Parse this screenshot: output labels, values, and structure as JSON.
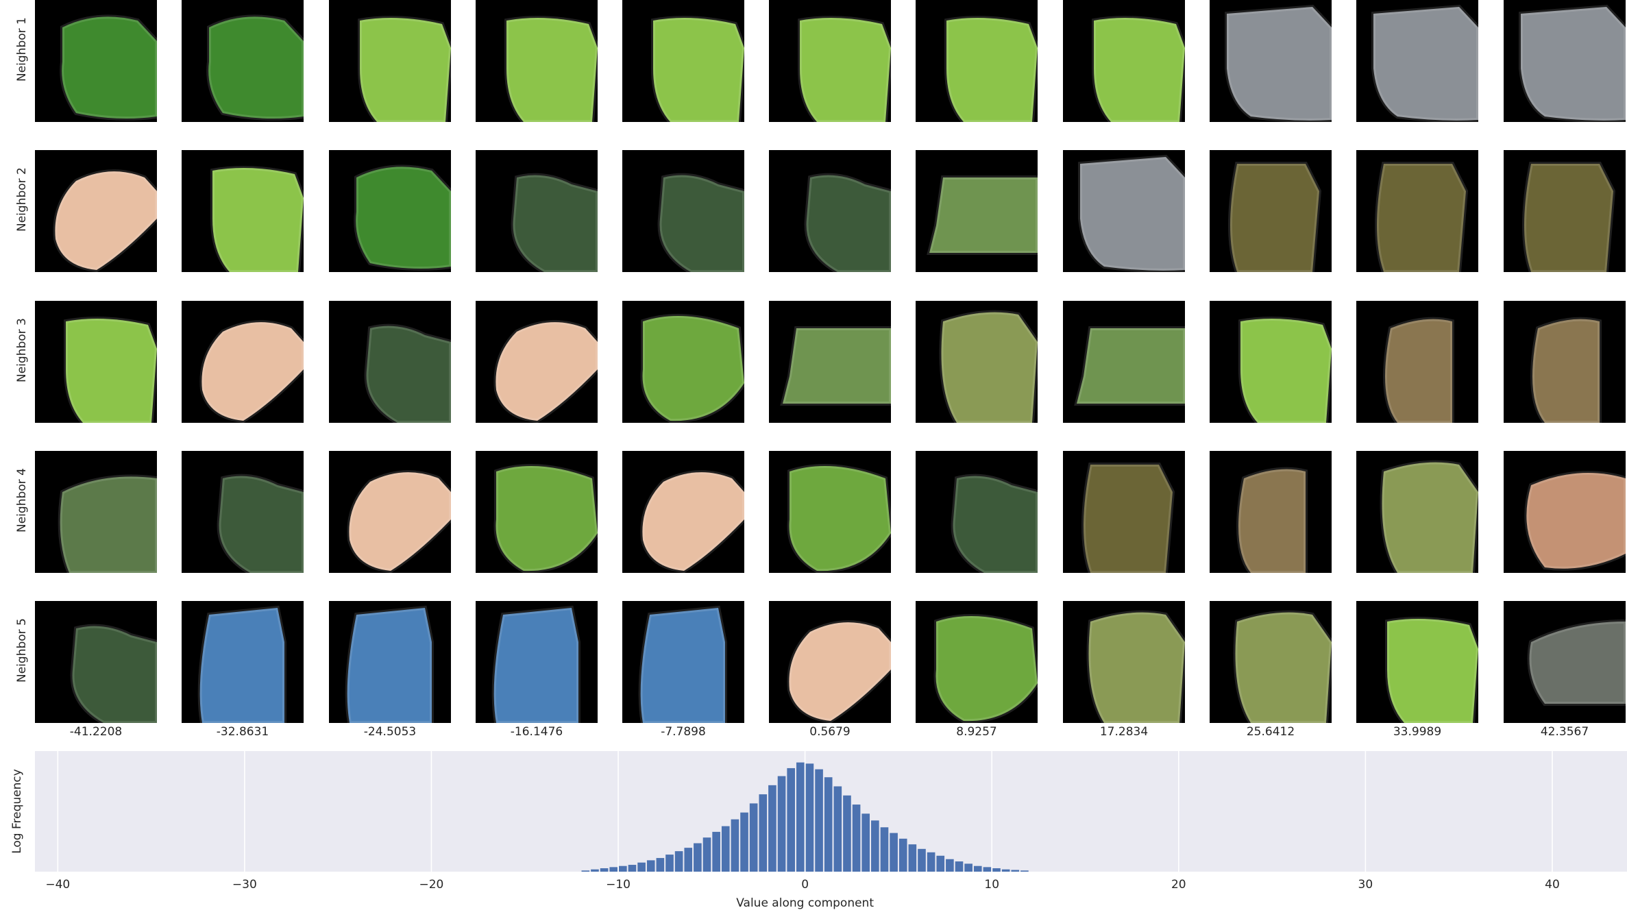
{
  "rows": [
    "Neighbor 1",
    "Neighbor 2",
    "Neighbor 3",
    "Neighbor 4",
    "Neighbor 5"
  ],
  "columns": [
    "-41.2208",
    "-32.8631",
    "-24.5053",
    "-16.1476",
    "-7.7898",
    "0.5679",
    "8.9257",
    "17.2834",
    "25.6412",
    "33.9989",
    "42.3567"
  ],
  "thumbnails": [
    [
      "leaf-dark",
      "leaf-dark",
      "leaf-light",
      "leaf-light",
      "leaf-light",
      "leaf-light",
      "leaf-light",
      "leaf-light",
      "gray-car",
      "gray-car",
      "gray-car"
    ],
    [
      "pink-blob",
      "leaf-light",
      "leaf-dark",
      "stem",
      "stem",
      "stem",
      "blur-field",
      "gray-car",
      "grass-bark",
      "grass-bark",
      "grass-bark"
    ],
    [
      "leaf-light",
      "pink-blob",
      "stem",
      "pink-blob",
      "grass-green",
      "blur-field",
      "flower",
      "blur-field",
      "leaf-light",
      "deer",
      "deer"
    ],
    [
      "leaf-blur",
      "stem",
      "pink-blob",
      "grass-green",
      "pink-blob",
      "grass-green",
      "stem",
      "grass-bark",
      "deer",
      "flower",
      "bread"
    ],
    [
      "stem",
      "water",
      "water",
      "water",
      "water",
      "pink-blob",
      "grass-green",
      "flower",
      "flower",
      "leaf-light",
      "rock"
    ]
  ],
  "colors": {
    "leaf-dark": "#3f8a2e",
    "leaf-light": "#8cc44a",
    "gray-car": "#8b9096",
    "pink-blob": "#e8bfa3",
    "stem": "#3d5a3a",
    "blur-field": "#6f9450",
    "grass-bark": "#6b6536",
    "grass-green": "#6ea83e",
    "flower": "#8a9a55",
    "deer": "#8a7650",
    "leaf-blur": "#5c7a4a",
    "water": "#4a80b8",
    "bread": "#c49274",
    "rock": "#6a7068",
    "hist_bar": "#4c72b0",
    "hist_bg": "#eaeaf2"
  },
  "chart_data": {
    "type": "bar",
    "ylabel": "Log Frequency",
    "xlabel": "Value along component",
    "xlim": [
      -41.2208,
      44.0
    ],
    "xticks": [
      -40,
      -30,
      -20,
      -10,
      0,
      10,
      20,
      30,
      40
    ],
    "grid": true,
    "bin_width": 0.25,
    "bins": [
      {
        "x": -11.75,
        "h": 0.01
      },
      {
        "x": -11.25,
        "h": 0.02
      },
      {
        "x": -10.75,
        "h": 0.03
      },
      {
        "x": -10.25,
        "h": 0.04
      },
      {
        "x": -9.75,
        "h": 0.05
      },
      {
        "x": -9.25,
        "h": 0.06
      },
      {
        "x": -8.75,
        "h": 0.08
      },
      {
        "x": -8.25,
        "h": 0.1
      },
      {
        "x": -7.75,
        "h": 0.12
      },
      {
        "x": -7.25,
        "h": 0.15
      },
      {
        "x": -6.75,
        "h": 0.18
      },
      {
        "x": -6.25,
        "h": 0.21
      },
      {
        "x": -5.75,
        "h": 0.25
      },
      {
        "x": -5.25,
        "h": 0.3
      },
      {
        "x": -4.75,
        "h": 0.35
      },
      {
        "x": -4.25,
        "h": 0.4
      },
      {
        "x": -3.75,
        "h": 0.46
      },
      {
        "x": -3.25,
        "h": 0.52
      },
      {
        "x": -2.75,
        "h": 0.6
      },
      {
        "x": -2.25,
        "h": 0.68
      },
      {
        "x": -1.75,
        "h": 0.76
      },
      {
        "x": -1.25,
        "h": 0.84
      },
      {
        "x": -0.75,
        "h": 0.91
      },
      {
        "x": -0.25,
        "h": 0.96
      },
      {
        "x": 0.25,
        "h": 0.95
      },
      {
        "x": 0.75,
        "h": 0.9
      },
      {
        "x": 1.25,
        "h": 0.83
      },
      {
        "x": 1.75,
        "h": 0.75
      },
      {
        "x": 2.25,
        "h": 0.67
      },
      {
        "x": 2.75,
        "h": 0.59
      },
      {
        "x": 3.25,
        "h": 0.51
      },
      {
        "x": 3.75,
        "h": 0.45
      },
      {
        "x": 4.25,
        "h": 0.39
      },
      {
        "x": 4.75,
        "h": 0.34
      },
      {
        "x": 5.25,
        "h": 0.29
      },
      {
        "x": 5.75,
        "h": 0.24
      },
      {
        "x": 6.25,
        "h": 0.2
      },
      {
        "x": 6.75,
        "h": 0.17
      },
      {
        "x": 7.25,
        "h": 0.14
      },
      {
        "x": 7.75,
        "h": 0.11
      },
      {
        "x": 8.25,
        "h": 0.09
      },
      {
        "x": 8.75,
        "h": 0.07
      },
      {
        "x": 9.25,
        "h": 0.05
      },
      {
        "x": 9.75,
        "h": 0.04
      },
      {
        "x": 10.25,
        "h": 0.03
      },
      {
        "x": 10.75,
        "h": 0.02
      },
      {
        "x": 11.25,
        "h": 0.015
      },
      {
        "x": 11.75,
        "h": 0.01
      }
    ]
  }
}
